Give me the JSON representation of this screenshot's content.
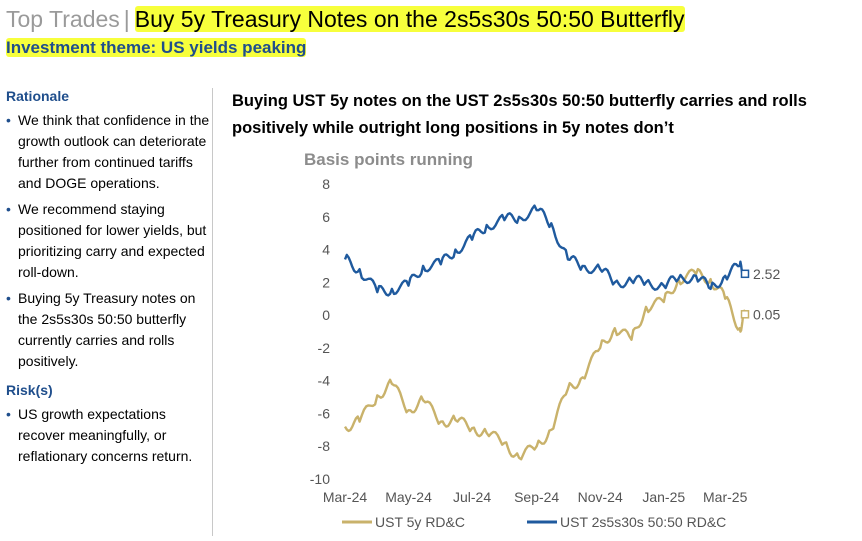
{
  "header": {
    "prefix": "Top Trades",
    "separator": "|",
    "title": "Buy 5y Treasury Notes on the 2s5s30s 50:50 Butterfly",
    "theme": "Investment theme: US yields peaking"
  },
  "sidebar": {
    "rationale_heading": "Rationale",
    "rationale": [
      "We think that confidence in the growth outlook can deteriorate further from continued tariffs and DOGE operations.",
      "We recommend staying positioned for lower yields, but prioritizing carry and expected roll-down.",
      "Buying 5y Treasury notes on the 2s5s30s 50:50 butterfly currently carries and rolls positively."
    ],
    "risks_heading": "Risk(s)",
    "risks": [
      "US growth expectations recover meaningfully, or reflationary concerns return."
    ]
  },
  "chart_data": {
    "type": "line",
    "title": "Buying UST 5y notes on the UST 2s5s30s 50:50 butterfly carries and rolls positively while outright long positions in 5y notes don’t",
    "ylabel": "Basis points running",
    "ylim": [
      -10,
      8
    ],
    "yticks": [
      "8",
      "6",
      "4",
      "2",
      "0",
      "-2",
      "-4",
      "-6",
      "-8",
      "-10"
    ],
    "x_tick_labels": [
      "Mar-24",
      "May-24",
      "Jul-24",
      "Sep-24",
      "Nov-24",
      "Jan-25",
      "Mar-25"
    ],
    "legend_position": "bottom",
    "grid": false,
    "x": [
      "2024-03-01",
      "2024-03-15",
      "2024-04-01",
      "2024-04-15",
      "2024-05-01",
      "2024-05-15",
      "2024-06-01",
      "2024-06-15",
      "2024-07-01",
      "2024-07-15",
      "2024-08-01",
      "2024-08-15",
      "2024-09-01",
      "2024-09-15",
      "2024-10-01",
      "2024-10-15",
      "2024-11-01",
      "2024-11-15",
      "2024-12-01",
      "2024-12-15",
      "2025-01-01",
      "2025-01-15",
      "2025-02-01",
      "2025-02-15",
      "2025-03-01",
      "2025-03-15",
      "2025-03-20"
    ],
    "series": [
      {
        "name": "UST 5y RD&C",
        "color": "#c9b26b",
        "values": [
          -6.8,
          -6.5,
          -4.9,
          -4.2,
          -5.8,
          -5.2,
          -6.5,
          -6.4,
          -6.9,
          -7.2,
          -7.8,
          -8.7,
          -8.0,
          -7.0,
          -4.5,
          -3.8,
          -2.0,
          -0.8,
          -1.5,
          0.5,
          0.8,
          2.2,
          2.5,
          2.2,
          1.0,
          -0.8,
          0.05
        ],
        "last_label": "0.05"
      },
      {
        "name": "UST 2s5s30s 50:50 RD&C",
        "color": "#1f5a9e",
        "values": [
          3.4,
          2.8,
          1.4,
          1.6,
          1.8,
          3.0,
          3.1,
          4.0,
          4.6,
          5.5,
          5.8,
          6.0,
          6.4,
          5.6,
          3.4,
          3.0,
          2.8,
          2.0,
          2.1,
          2.0,
          1.8,
          2.2,
          2.4,
          1.6,
          2.4,
          3.0,
          2.52
        ],
        "last_label": "2.52"
      }
    ]
  }
}
